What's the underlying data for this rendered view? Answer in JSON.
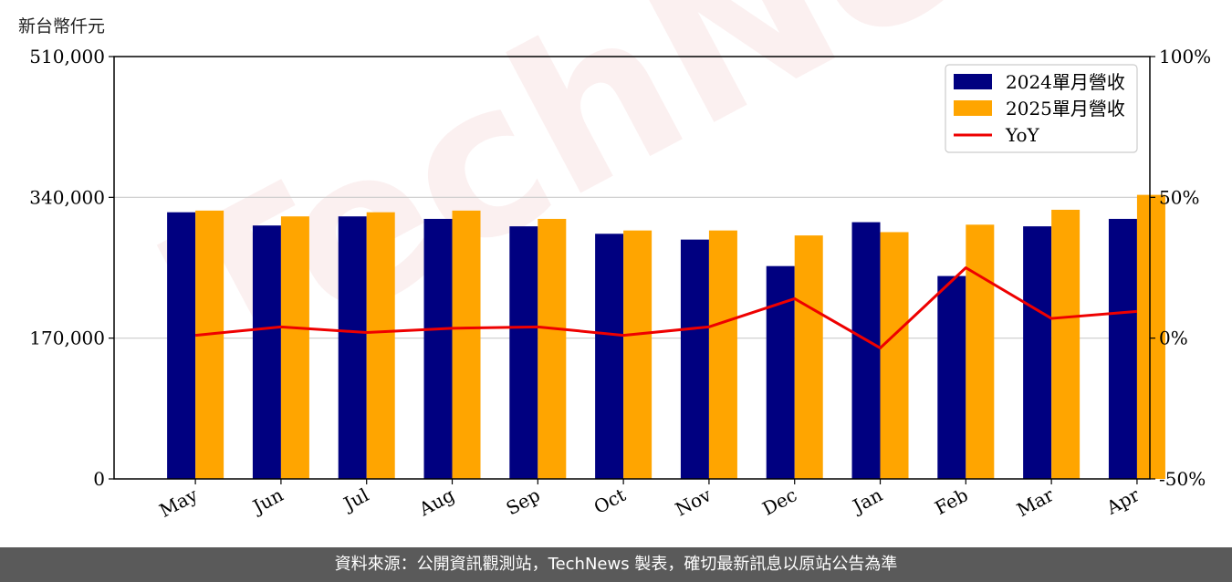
{
  "unit_label": "新台幣仟元",
  "watermark": "TechNews",
  "footer": "資料來源：公開資訊觀測站，TechNews 製表，確切最新訊息以原站公告為準",
  "colors": {
    "series_2024": "#000080",
    "series_2025": "#FFA500",
    "yoy": "#EE0000"
  },
  "chart_data": {
    "type": "bar",
    "categories": [
      "May",
      "Jun",
      "Jul",
      "Aug",
      "Sep",
      "Oct",
      "Nov",
      "Dec",
      "Jan",
      "Feb",
      "Mar",
      "Apr"
    ],
    "series": [
      {
        "name": "2024單月營收",
        "type": "bar",
        "axis": "left",
        "values": [
          322000,
          306000,
          317000,
          314000,
          305000,
          296000,
          289000,
          257000,
          310000,
          245000,
          305000,
          314000
        ]
      },
      {
        "name": "2025單月營收",
        "type": "bar",
        "axis": "left",
        "values": [
          324000,
          317000,
          322000,
          324000,
          314000,
          300000,
          300000,
          294000,
          298000,
          307000,
          325000,
          343000
        ]
      },
      {
        "name": "YoY",
        "type": "line",
        "axis": "right",
        "values": [
          1,
          4,
          2,
          3.5,
          4,
          1,
          4,
          14,
          -3.5,
          25,
          7,
          9.5
        ]
      }
    ],
    "left_axis": {
      "ylim": [
        0,
        510000
      ],
      "ticks": [
        "0",
        "170,000",
        "340,000",
        "510,000"
      ],
      "tick_values": [
        0,
        170000,
        340000,
        510000
      ]
    },
    "right_axis": {
      "ylim": [
        -50,
        100
      ],
      "ticks": [
        "-50%",
        "0%",
        "50%",
        "100%"
      ],
      "tick_values": [
        -50,
        0,
        50,
        100
      ]
    },
    "grid": "horizontal",
    "legend": "top-right"
  }
}
